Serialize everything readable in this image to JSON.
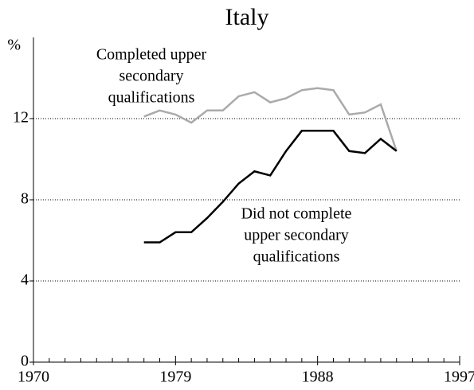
{
  "chart_data": {
    "type": "line",
    "title": "Italy",
    "y_label": "%",
    "x": [
      1977,
      1978,
      1979,
      1980,
      1981,
      1982,
      1983,
      1984,
      1985,
      1986,
      1987,
      1988,
      1989,
      1990,
      1991,
      1992,
      1993
    ],
    "series": [
      {
        "name": "Completed upper secondary qualifications",
        "color": "#aaaaaa",
        "values": [
          12.1,
          12.4,
          12.2,
          11.8,
          12.4,
          12.4,
          13.1,
          13.3,
          12.8,
          13.0,
          13.4,
          13.5,
          13.4,
          12.2,
          12.3,
          12.7,
          10.4
        ]
      },
      {
        "name": "Did not complete upper secondary qualifications",
        "color": "#000000",
        "values": [
          5.9,
          5.9,
          6.4,
          6.4,
          7.1,
          7.9,
          8.8,
          9.4,
          9.2,
          10.4,
          11.4,
          11.4,
          11.4,
          10.4,
          10.3,
          11.0,
          10.4
        ]
      }
    ],
    "annotations": [
      {
        "lines": [
          "Completed upper",
          "secondary",
          "qualifications"
        ]
      },
      {
        "lines": [
          "Did not complete",
          "upper secondary",
          "qualifications"
        ]
      }
    ],
    "xlim": [
      1970,
      1997
    ],
    "xticks": [
      1970,
      1979,
      1988,
      1997
    ],
    "minor_xticks": [
      1971,
      1972,
      1973,
      1974,
      1975,
      1976,
      1977,
      1978,
      1980,
      1981,
      1982,
      1983,
      1984,
      1985,
      1986,
      1987,
      1989,
      1990,
      1991,
      1992,
      1993,
      1994,
      1995,
      1996
    ],
    "ylim": [
      0,
      16
    ],
    "yticks": [
      0,
      4,
      8,
      12
    ],
    "grid": true
  }
}
